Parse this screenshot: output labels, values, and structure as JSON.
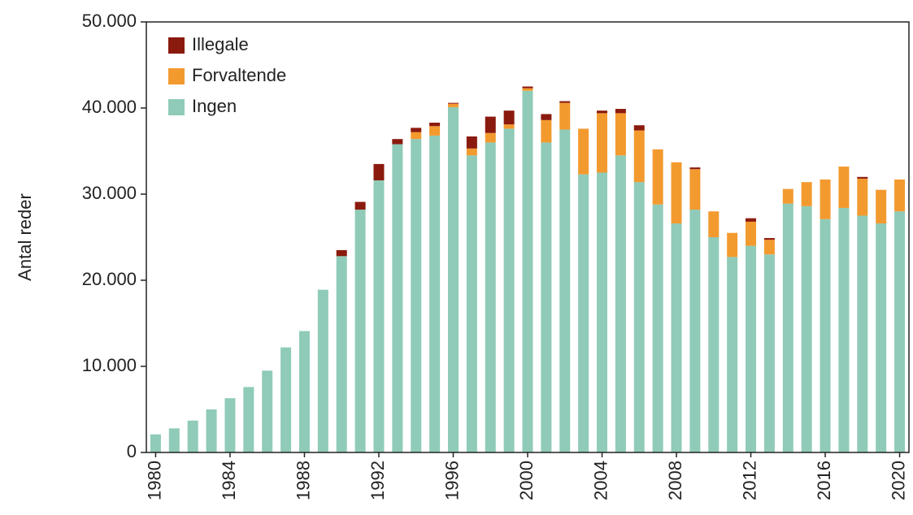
{
  "chart_data": {
    "type": "stacked_bar",
    "ylabel": "Antal reder",
    "categories": [
      "1980",
      null,
      null,
      null,
      "1984",
      null,
      null,
      null,
      "1988",
      null,
      null,
      null,
      "1992",
      null,
      null,
      null,
      "1996",
      null,
      null,
      null,
      "2000",
      null,
      null,
      null,
      "2004",
      null,
      null,
      null,
      "2008",
      null,
      null,
      null,
      "2012",
      null,
      null,
      null,
      "2016",
      null,
      null,
      null,
      "2020"
    ],
    "series": [
      {
        "name": "Ingen",
        "color": "#8fcbb8",
        "values": [
          2100,
          2800,
          3700,
          5000,
          6300,
          7600,
          9500,
          12200,
          14100,
          18900,
          22800,
          28200,
          31600,
          35800,
          36400,
          36800,
          40100,
          34500,
          36000,
          37600,
          42000,
          36000,
          37500,
          32300,
          32500,
          34500,
          31400,
          28800,
          26600,
          28200,
          25000,
          22700,
          24000,
          23000,
          28900,
          28600,
          27100,
          28400,
          27500,
          26600,
          28000
        ]
      },
      {
        "name": "Forvaltende",
        "color": "#f39a2f",
        "values": [
          0,
          0,
          0,
          0,
          0,
          0,
          0,
          0,
          0,
          0,
          0,
          0,
          0,
          0,
          800,
          1100,
          400,
          800,
          1100,
          500,
          300,
          2600,
          3100,
          5300,
          6900,
          4900,
          6000,
          6400,
          7100,
          4700,
          3000,
          2800,
          2800,
          1700,
          1700,
          2800,
          4600,
          4800,
          4300,
          3900,
          3700
        ]
      },
      {
        "name": "Illegale",
        "color": "#8b1a0e",
        "values": [
          0,
          0,
          0,
          0,
          0,
          0,
          0,
          0,
          0,
          0,
          700,
          900,
          1900,
          600,
          500,
          400,
          100,
          1400,
          1900,
          1600,
          200,
          700,
          200,
          0,
          300,
          500,
          600,
          0,
          0,
          200,
          0,
          0,
          400,
          200,
          0,
          0,
          0,
          0,
          200,
          0,
          0
        ]
      }
    ],
    "ylim": [
      0,
      50000
    ],
    "yticks": [
      0,
      {
        "value": 10000,
        "label": "10.000"
      },
      {
        "value": 20000,
        "label": "20.000"
      },
      {
        "value": 30000,
        "label": "30.000"
      },
      {
        "value": 40000,
        "label": "40.000"
      },
      {
        "value": 50000,
        "label": "50.000"
      }
    ],
    "legend": "upper left"
  }
}
